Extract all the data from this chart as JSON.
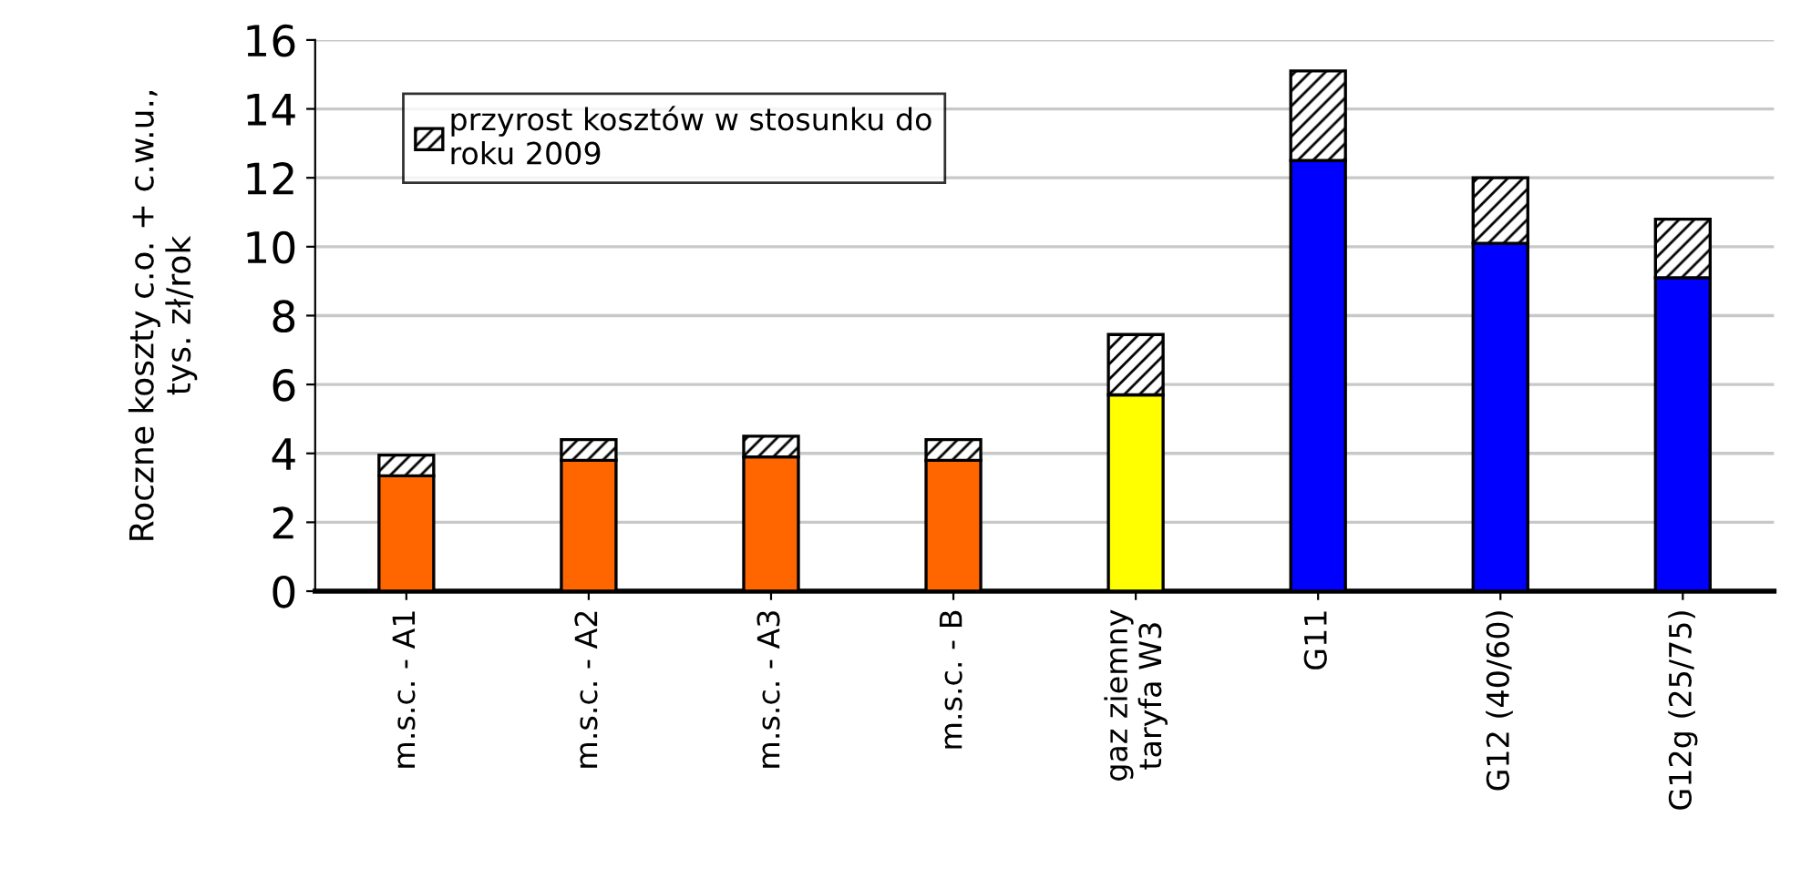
{
  "chart_data": {
    "type": "bar",
    "stacked": true,
    "ylabel": "Roczne koszty c.o. + c.w.u.,\ntys. zł/rok",
    "categories": [
      "m.s.c. - A1",
      "m.s.c. - A2",
      "m.s.c. - A3",
      "m.s.c. - B",
      "gaz ziemny\ntaryfa W3",
      "G11",
      "G12 (40/60)",
      "G12g (25/75)"
    ],
    "series": [
      {
        "colors": [
          "#ff6600",
          "#ff6600",
          "#ff6600",
          "#ff6600",
          "#ffff00",
          "#0000ff",
          "#0000ff",
          "#0000ff"
        ],
        "values": [
          3.35,
          3.8,
          3.9,
          3.8,
          5.7,
          12.5,
          10.1,
          9.1
        ]
      },
      {
        "name": "przyrost kosztów w stosunku do\nroku 2009",
        "color": "#000000",
        "values": [
          0.6,
          0.6,
          0.6,
          0.6,
          1.75,
          2.6,
          1.9,
          1.7
        ]
      }
    ],
    "ylim": [
      0,
      16
    ],
    "yticks": [
      0,
      2,
      4,
      6,
      8,
      10,
      12,
      14,
      16
    ],
    "grid": "y",
    "legend": "top left"
  }
}
